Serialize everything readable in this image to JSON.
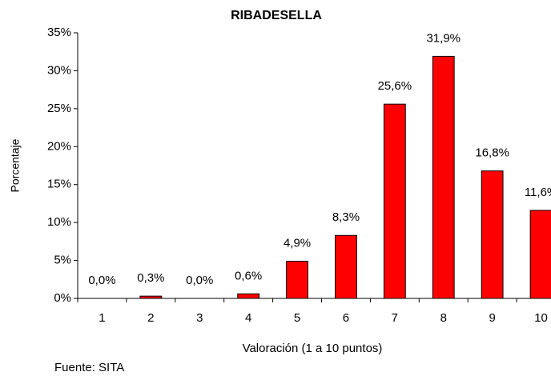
{
  "chart_data": {
    "type": "bar",
    "title": "RIBADESELLA",
    "y_label": "Porcentaje",
    "x_label": "Valoración (1 a 10 puntos)",
    "source": "Fuente: SITA",
    "categories": [
      "1",
      "2",
      "3",
      "4",
      "5",
      "6",
      "7",
      "8",
      "9",
      "10"
    ],
    "values": [
      0,
      0.3,
      0,
      0.6,
      4.9,
      8.3,
      25.6,
      31.9,
      16.8,
      11.6
    ],
    "value_labels": [
      "0,0%",
      "0,3%",
      "0,0%",
      "0,6%",
      "4,9%",
      "8,3%",
      "25,6%",
      "31,9%",
      "16,8%",
      "11,6%"
    ],
    "color": "#ff0000",
    "ylim": [
      0,
      35
    ],
    "yticks": [
      {
        "value": 0,
        "label": "0%"
      },
      {
        "value": 5,
        "label": "5%"
      },
      {
        "value": 10,
        "label": "10%"
      },
      {
        "value": 15,
        "label": "15%"
      },
      {
        "value": 20,
        "label": "20%"
      },
      {
        "value": 25,
        "label": "25%"
      },
      {
        "value": 30,
        "label": "30%"
      },
      {
        "value": 35,
        "label": "35%"
      }
    ],
    "grid": false
  }
}
